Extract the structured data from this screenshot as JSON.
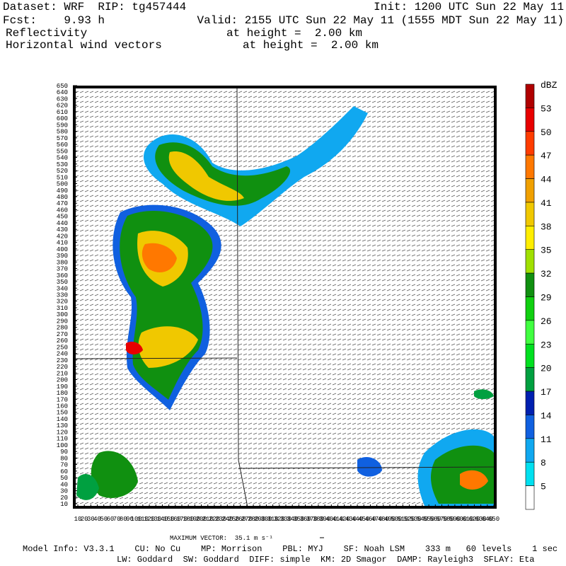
{
  "header": {
    "dataset": "Dataset: WRF  RIP: tg457444",
    "init": "Init: 1200 UTC Sun 22 May 11",
    "fcst": "Fcst:    9.93 h",
    "valid": "Valid: 2155 UTC Sun 22 May 11 (1555 MDT Sun 22 May 11)",
    "field1": "Reflectivity",
    "field1_height": "at height =  2.00 km",
    "field2": "Horizontal wind vectors",
    "field2_height": "at height =  2.00 km"
  },
  "axes": {
    "x_labels": [
      10,
      20,
      30,
      40,
      50,
      60,
      70,
      80,
      90,
      100,
      110,
      120,
      130,
      140,
      150,
      160,
      170,
      180,
      190,
      200,
      210,
      220,
      230,
      240,
      250,
      260,
      270,
      280,
      290,
      300,
      310,
      320,
      330,
      340,
      350,
      360,
      370,
      380,
      390,
      400,
      410,
      420,
      430,
      440,
      450,
      460,
      470,
      480,
      490,
      500,
      510,
      520,
      530,
      540,
      550,
      560,
      570,
      580,
      590,
      600,
      610,
      620,
      630,
      640,
      650
    ],
    "y_labels": [
      10,
      20,
      30,
      40,
      50,
      60,
      70,
      80,
      90,
      100,
      110,
      120,
      130,
      140,
      150,
      160,
      170,
      180,
      190,
      200,
      210,
      220,
      230,
      240,
      250,
      260,
      270,
      280,
      290,
      300,
      310,
      320,
      330,
      340,
      350,
      360,
      370,
      380,
      390,
      400,
      410,
      420,
      430,
      440,
      450,
      460,
      470,
      480,
      490,
      500,
      510,
      520,
      530,
      540,
      550,
      560,
      570,
      580,
      590,
      600,
      610,
      620,
      630,
      640,
      650
    ]
  },
  "colorbar": {
    "unit": "dBZ",
    "levels": [
      5,
      8,
      11,
      14,
      17,
      20,
      23,
      26,
      29,
      32,
      35,
      38,
      41,
      44,
      47,
      50,
      53
    ],
    "colors": [
      "#ffffff",
      "#00e0f0",
      "#10a8f0",
      "#1060e0",
      "#0020b0",
      "#00a040",
      "#00e020",
      "#40ff40",
      "#10d010",
      "#109010",
      "#a0e000",
      "#ffee00",
      "#f0c800",
      "#f0a000",
      "#ff7800",
      "#ff3c00",
      "#e80000",
      "#b00000"
    ]
  },
  "footer": {
    "max_vector": "MAXIMUM VECTOR:  35.1 m s⁻¹",
    "model_info": "Model Info: V3.3.1    CU: No Cu    MP: Morrison    PBL: MYJ    SF: Noah LSM    333 m   60 levels    1 sec",
    "physics": "LW: Goddard  SW: Goddard  DIFF: simple  KM: 2D Smagor  DAMP: Rayleigh3  SFLAY: Eta"
  }
}
